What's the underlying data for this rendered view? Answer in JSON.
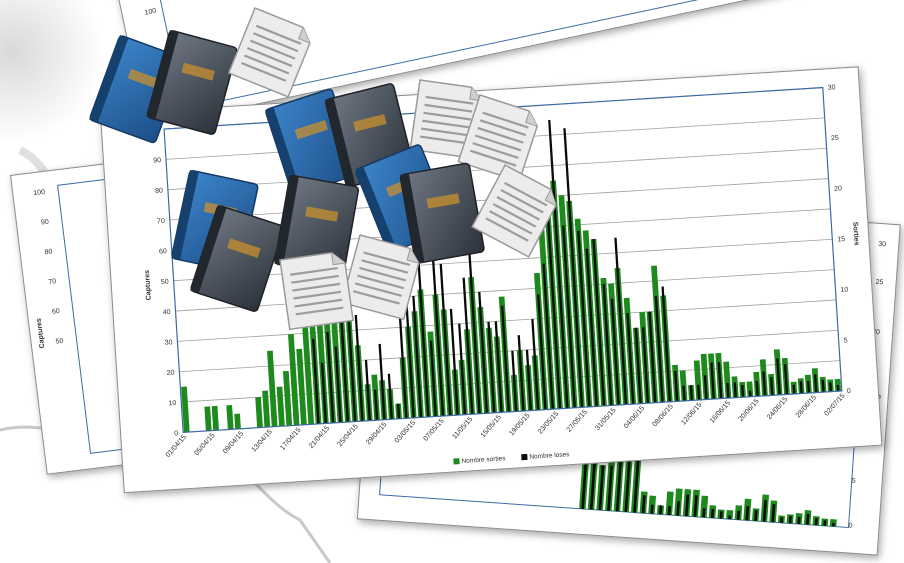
{
  "colors": {
    "green": "#1e8a1e",
    "black": "#0a0a0a",
    "frame": "#3b6aa6",
    "book_blue": "#2a67a8",
    "book_grey": "#4d5560",
    "paper": "#e4e4e4"
  },
  "icons": [
    "book-icon",
    "document-icon"
  ],
  "chart_data": [
    {
      "type": "bar",
      "y_left_label": "Captures",
      "y_right_label": "Sorties",
      "yl_ticks": [
        "0",
        "10",
        "20",
        "30",
        "40",
        "50",
        "60",
        "70",
        "80",
        "90",
        "100"
      ],
      "yr_ticks": [
        "0",
        "5",
        "10",
        "15",
        "20",
        "25",
        "30"
      ],
      "ylim_left": [
        0,
        100
      ],
      "ylim_right": [
        0,
        30
      ],
      "x_ticks": [
        "01/04/15",
        "05/04/15",
        "09/04/15",
        "13/04/15",
        "17/04/15",
        "21/04/15",
        "25/04/15",
        "29/04/15",
        "03/05/15",
        "07/05/15",
        "11/05/15",
        "15/05/15",
        "19/05/15",
        "23/05/15",
        "27/05/15",
        "31/05/15",
        "04/06/15",
        "08/06/15",
        "12/06/15",
        "16/06/15",
        "20/06/15",
        "24/06/15",
        "28/06/15",
        "02/07/15"
      ],
      "legend": [
        "Nombre sorties",
        "Nombre loses"
      ],
      "series": [
        {
          "name": "Nombre sorties",
          "values": [
            15,
            0,
            0,
            8,
            8,
            0,
            8,
            5,
            0,
            0,
            10,
            12,
            25,
            13,
            18,
            30,
            25,
            35,
            32,
            38,
            42,
            40,
            50,
            42,
            25,
            12,
            15,
            13,
            10,
            5,
            20,
            30,
            35,
            42,
            28,
            40,
            35,
            15,
            18,
            28,
            45,
            35,
            28,
            25,
            38,
            12,
            20,
            15,
            18,
            45,
            62,
            68,
            75,
            70,
            68,
            62,
            58,
            55,
            42,
            40,
            45,
            35,
            25,
            30,
            30,
            45,
            35,
            12,
            10,
            5,
            13,
            15,
            15,
            15,
            12,
            7,
            5,
            5,
            8,
            12,
            7,
            15,
            12,
            4,
            5,
            6,
            8,
            5,
            4,
            4
          ]
        },
        {
          "name": "Nombre loses",
          "values": [
            0,
            0,
            0,
            0,
            0,
            0,
            0,
            0,
            0,
            0,
            0,
            0,
            0,
            0,
            0,
            0,
            0,
            0,
            28,
            20,
            30,
            25,
            40,
            48,
            35,
            20,
            10,
            25,
            15,
            5,
            35,
            45,
            40,
            55,
            25,
            52,
            50,
            35,
            30,
            45,
            55,
            40,
            30,
            30,
            35,
            20,
            25,
            20,
            30,
            38,
            48,
            68,
            95,
            60,
            92,
            58,
            52,
            55,
            40,
            35,
            55,
            30,
            25,
            25,
            30,
            35,
            38,
            10,
            5,
            5,
            5,
            8,
            12,
            12,
            5,
            5,
            4,
            2,
            5,
            8,
            6,
            12,
            10,
            3,
            4,
            4,
            6,
            4,
            3,
            2
          ]
        }
      ]
    }
  ]
}
